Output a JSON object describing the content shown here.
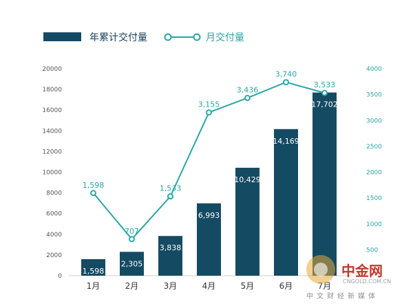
{
  "chart_data": {
    "type": "bar",
    "categories": [
      "1月",
      "2月",
      "3月",
      "4月",
      "5月",
      "6月",
      "7月"
    ],
    "series": [
      {
        "name": "年累计交付量",
        "type": "bar",
        "axis": "left",
        "color": "#154a63",
        "values": [
          1598,
          2305,
          3838,
          6993,
          10429,
          14169,
          17702
        ],
        "labels": [
          "1,598",
          "2,305",
          "3,838",
          "6,993",
          "10,429",
          "14,169",
          "17,702"
        ]
      },
      {
        "name": "月交付量",
        "type": "line",
        "axis": "right",
        "color": "#2aa6a6",
        "values": [
          1598,
          707,
          1533,
          3155,
          3436,
          3740,
          3533
        ],
        "labels": [
          "1,598",
          "707",
          "1,533",
          "3,155",
          "3,436",
          "3,740",
          "3,533"
        ]
      }
    ],
    "y_left": {
      "lim": [
        0,
        20000
      ],
      "ticks": [
        "0",
        "2000",
        "4000",
        "6000",
        "8000",
        "10000",
        "12000",
        "14000",
        "16000",
        "18000",
        "20000"
      ]
    },
    "y_right": {
      "lim": [
        0,
        4000
      ],
      "ticks": [
        "500",
        "1000",
        "1500",
        "2000",
        "2500",
        "3000",
        "3500",
        "4000"
      ]
    },
    "grid": false,
    "legend": "top-left"
  },
  "watermark": {
    "brand": "中金网",
    "url": "CNGOLD.COM.CN",
    "tagline": "中文财经新媒体"
  }
}
